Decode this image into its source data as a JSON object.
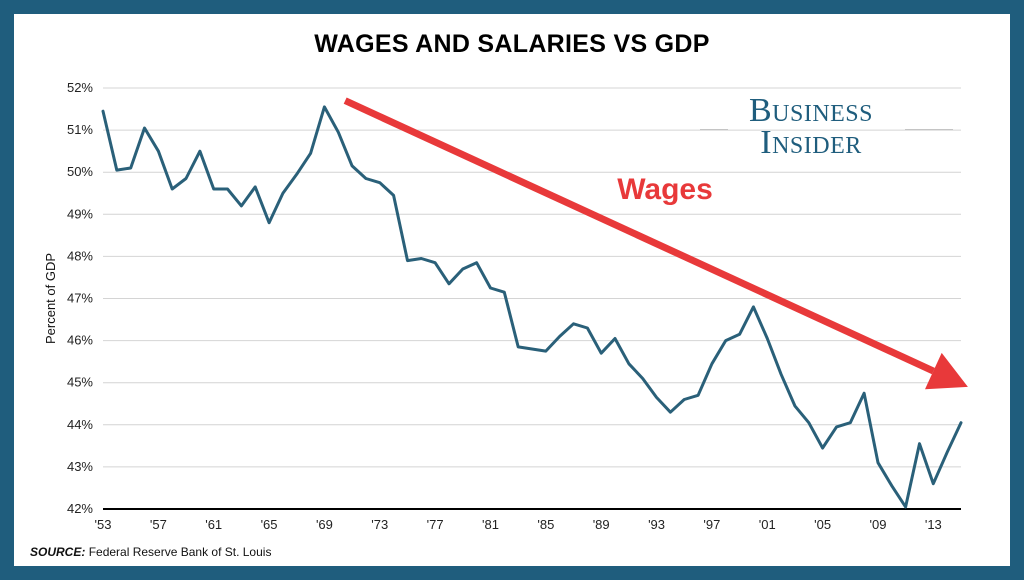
{
  "title": "WAGES AND SALARIES VS GDP",
  "brand": {
    "line1": "Business",
    "line2": "Insider"
  },
  "source": {
    "label": "SOURCE:",
    "text": "Federal Reserve Bank of St. Louis"
  },
  "annotation": {
    "label": "Wages",
    "color": "#e8393a"
  },
  "colors": {
    "line": "#2a6079",
    "grid": "#d4d4d4",
    "baseline": "#000000",
    "frame": "#1f5d7d"
  },
  "chart_data": {
    "type": "line",
    "title": "WAGES AND SALARIES VS GDP",
    "xlabel": "",
    "ylabel": "Percent of GDP",
    "xlim": [
      1953,
      2015
    ],
    "ylim": [
      42,
      52
    ],
    "grid": true,
    "x_ticks": [
      "'53",
      "'57",
      "'61",
      "'65",
      "'69",
      "'73",
      "'77",
      "'81",
      "'85",
      "'89",
      "'93",
      "'97",
      "'01",
      "'05",
      "'09",
      "'13"
    ],
    "y_ticks": [
      "42%",
      "43%",
      "44%",
      "45%",
      "46%",
      "47%",
      "48%",
      "49%",
      "50%",
      "51%",
      "52%"
    ],
    "series": [
      {
        "name": "",
        "x": [
          1953,
          1954,
          1955,
          1956,
          1957,
          1958,
          1959,
          1960,
          1961,
          1962,
          1963,
          1964,
          1965,
          1966,
          1967,
          1968,
          1969,
          1970,
          1971,
          1972,
          1973,
          1974,
          1975,
          1976,
          1977,
          1978,
          1979,
          1980,
          1981,
          1982,
          1983,
          1984,
          1985,
          1986,
          1987,
          1988,
          1989,
          1990,
          1991,
          1992,
          1993,
          1994,
          1995,
          1996,
          1997,
          1998,
          1999,
          2000,
          2001,
          2002,
          2003,
          2004,
          2005,
          2006,
          2007,
          2008,
          2009,
          2010,
          2011,
          2012,
          2013,
          2014,
          2015
        ],
        "y": [
          51.45,
          50.05,
          50.1,
          51.05,
          50.5,
          49.6,
          49.85,
          50.5,
          49.6,
          49.6,
          49.2,
          49.65,
          48.8,
          49.5,
          49.95,
          50.45,
          51.55,
          50.95,
          50.15,
          49.85,
          49.75,
          49.45,
          47.9,
          47.95,
          47.85,
          47.35,
          47.7,
          47.85,
          47.25,
          47.15,
          45.85,
          45.8,
          45.75,
          46.1,
          46.4,
          46.3,
          45.7,
          46.05,
          45.45,
          45.1,
          44.65,
          44.3,
          44.6,
          44.7,
          45.45,
          46.0,
          46.15,
          46.8,
          46.05,
          45.2,
          44.45,
          44.05,
          43.45,
          43.95,
          44.05,
          44.75,
          43.1,
          42.55,
          42.05,
          43.55,
          42.6,
          43.35,
          44.05
        ]
      }
    ],
    "annotations": [
      {
        "text": "Wages",
        "type": "trend-arrow",
        "from": [
          1970.5,
          51.7
        ],
        "to": [
          2015.5,
          44.9
        ]
      }
    ]
  }
}
